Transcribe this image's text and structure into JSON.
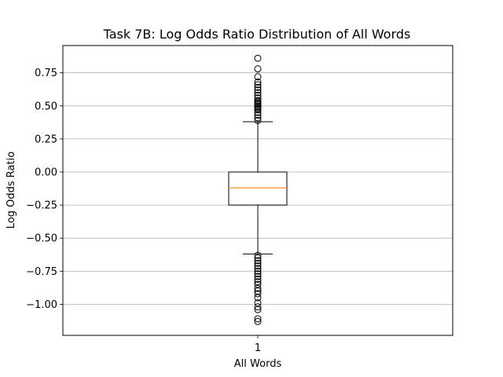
{
  "chart_data": {
    "type": "box",
    "title": "Task 7B: Log Odds Ratio Distribution of All Words",
    "xlabel": "All Words",
    "ylabel": "Log Odds Ratio",
    "x_tick_labels": [
      "1"
    ],
    "ylim": [
      -1.2,
      0.95
    ],
    "y_ticks": [
      0.75,
      0.5,
      0.25,
      0.0,
      -0.25,
      -0.5,
      -0.75,
      -1.0
    ],
    "y_tick_labels": [
      "0.75",
      "0.50",
      "0.25",
      "0.00",
      "−0.25",
      "−0.50",
      "−0.75",
      "−1.00"
    ],
    "grid": "y",
    "series": [
      {
        "position": 1,
        "whisker_high": 0.38,
        "q3": 0.0,
        "median": -0.12,
        "q1": -0.25,
        "whisker_low": -0.62,
        "outliers": [
          0.86,
          0.78,
          0.72,
          0.68,
          0.66,
          0.64,
          0.62,
          0.6,
          0.58,
          0.56,
          0.54,
          0.53,
          0.52,
          0.51,
          0.5,
          0.49,
          0.48,
          0.47,
          0.45,
          0.43,
          0.41,
          0.39,
          -0.63,
          -0.65,
          -0.67,
          -0.69,
          -0.71,
          -0.73,
          -0.75,
          -0.77,
          -0.79,
          -0.81,
          -0.83,
          -0.85,
          -0.88,
          -0.9,
          -0.92,
          -0.95,
          -0.99,
          -1.02,
          -1.04,
          -1.11,
          -1.13
        ]
      }
    ],
    "colors": {
      "box": "#000000",
      "median": "#ff7f0e",
      "grid": "#b0b0b0",
      "outlier": "#000000"
    }
  }
}
